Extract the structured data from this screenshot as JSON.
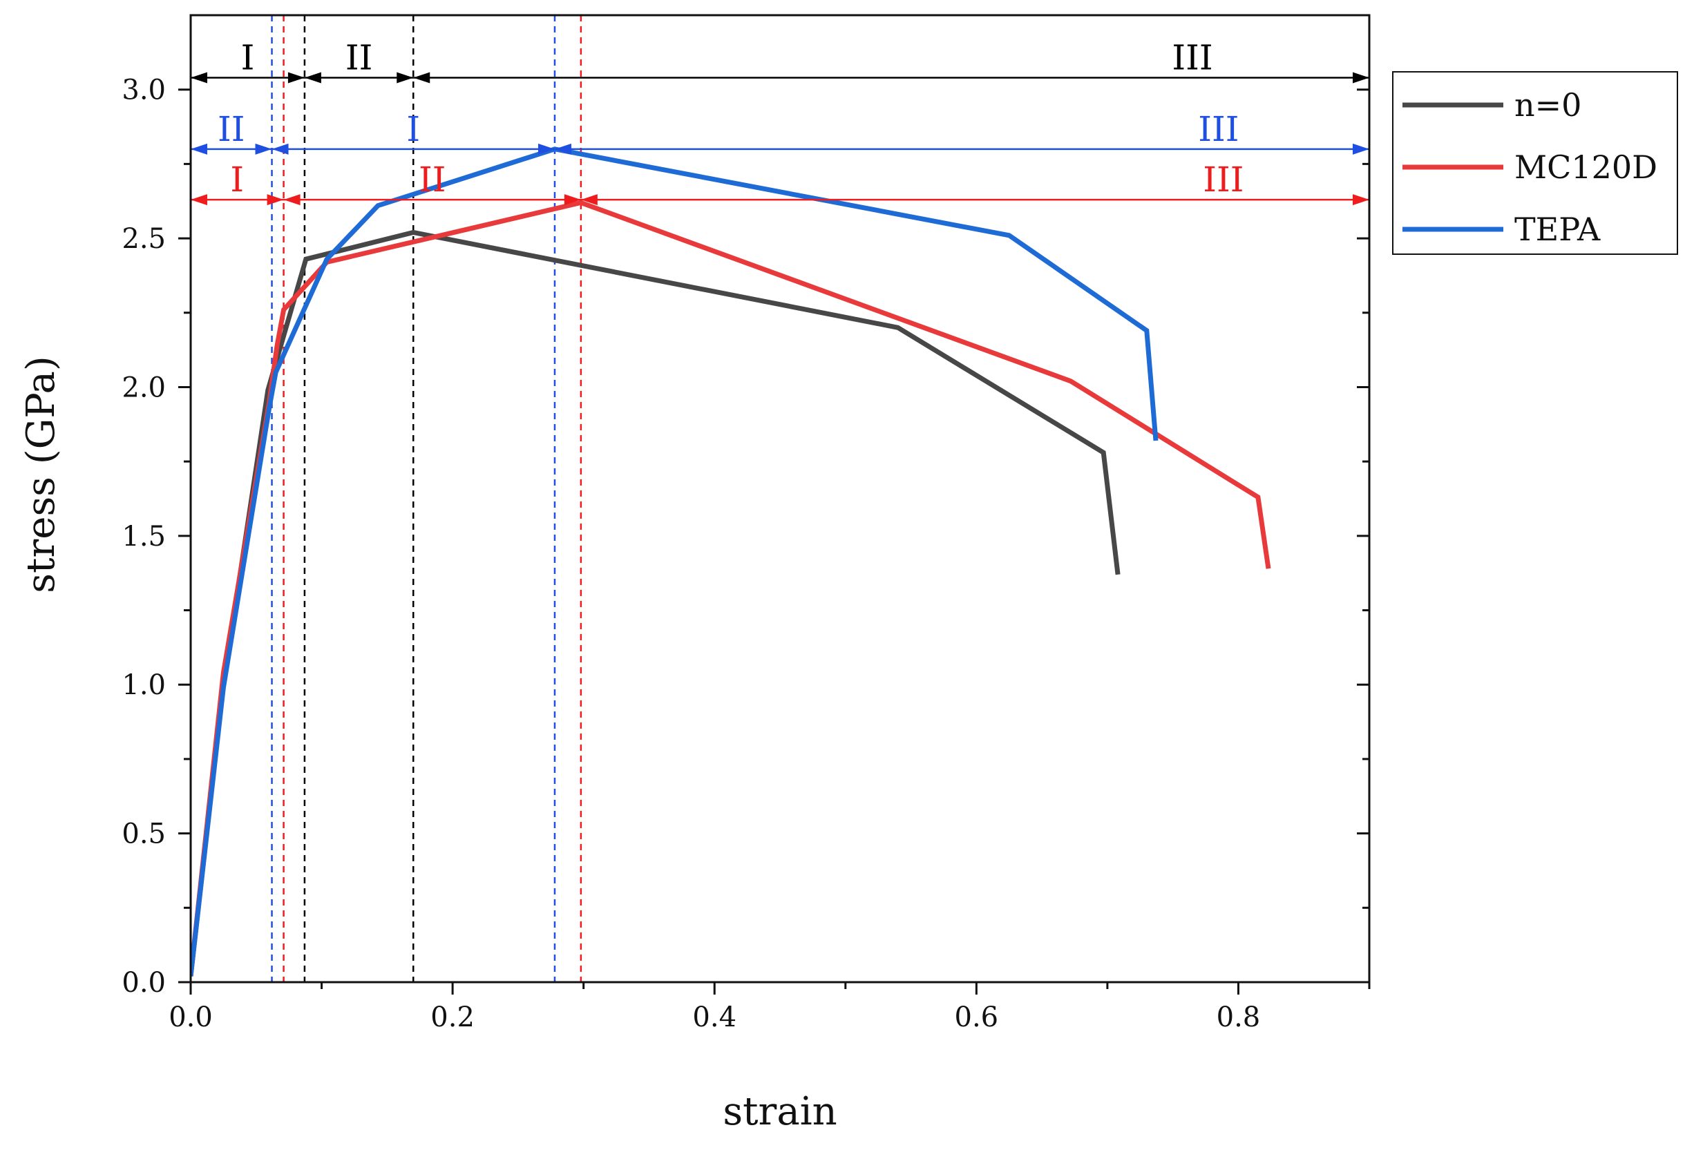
{
  "chart_data": {
    "type": "line",
    "xlabel": "strain",
    "ylabel": "stress (GPa)",
    "xlim": [
      0.0,
      0.9
    ],
    "ylim": [
      0.0,
      3.25
    ],
    "x_ticks": [
      "0.0",
      "0.2",
      "0.4",
      "0.6",
      "0.8"
    ],
    "x_tick_values": [
      0.0,
      0.2,
      0.4,
      0.6,
      0.8
    ],
    "y_ticks": [
      "0.0",
      "0.5",
      "1.0",
      "1.5",
      "2.0",
      "2.5",
      "3.0"
    ],
    "y_tick_values": [
      0.0,
      0.5,
      1.0,
      1.5,
      2.0,
      2.5,
      3.0
    ],
    "grid": false,
    "legend_position": "outside-right-top",
    "series": [
      {
        "name": "n=0",
        "color": "#474747",
        "points": [
          [
            0.0,
            0.02
          ],
          [
            0.025,
            1.0
          ],
          [
            0.059,
            1.99
          ],
          [
            0.088,
            2.43
          ],
          [
            0.17,
            2.52
          ],
          [
            0.54,
            2.2
          ],
          [
            0.697,
            1.78
          ],
          [
            0.708,
            1.37
          ]
        ]
      },
      {
        "name": "MC120D",
        "color": "#e8393b",
        "points": [
          [
            0.0,
            0.02
          ],
          [
            0.025,
            1.04
          ],
          [
            0.06,
            1.95
          ],
          [
            0.066,
            2.14
          ],
          [
            0.071,
            2.26
          ],
          [
            0.104,
            2.42
          ],
          [
            0.298,
            2.62
          ],
          [
            0.672,
            2.02
          ],
          [
            0.815,
            1.63
          ],
          [
            0.823,
            1.39
          ]
        ]
      },
      {
        "name": "TEPA",
        "color": "#1f6bd6",
        "points": [
          [
            0.0,
            0.02
          ],
          [
            0.025,
            0.99
          ],
          [
            0.06,
            1.93
          ],
          [
            0.065,
            2.05
          ],
          [
            0.104,
            2.43
          ],
          [
            0.143,
            2.61
          ],
          [
            0.278,
            2.8
          ],
          [
            0.625,
            2.51
          ],
          [
            0.73,
            2.19
          ],
          [
            0.737,
            1.82
          ]
        ]
      }
    ],
    "region_lines": [
      {
        "group": "n=0",
        "color": "#000000",
        "x": 0.087
      },
      {
        "group": "n=0",
        "color": "#000000",
        "x": 0.17
      },
      {
        "group": "TEPA",
        "color": "#1f4fe0",
        "x": 0.062
      },
      {
        "group": "TEPA",
        "color": "#1f4fe0",
        "x": 0.278
      },
      {
        "group": "MC120D",
        "color": "#ee1c1c",
        "x": 0.071
      },
      {
        "group": "MC120D",
        "color": "#ee1c1c",
        "x": 0.298
      }
    ],
    "region_annotations": [
      {
        "group": "n=0",
        "color": "#000000",
        "y": 3.04,
        "boundaries": [
          0.0,
          0.087,
          0.17,
          0.9
        ],
        "labels": [
          "I",
          "II",
          "III"
        ]
      },
      {
        "group": "TEPA",
        "color": "#1f4fe0",
        "y": 2.8,
        "boundaries": [
          0.0,
          0.062,
          0.278,
          0.9
        ],
        "labels": [
          "II",
          "I",
          "III"
        ]
      },
      {
        "group": "MC120D",
        "color": "#ee1c1c",
        "y": 2.63,
        "boundaries": [
          0.0,
          0.071,
          0.298,
          0.9
        ],
        "labels": [
          "I",
          "II",
          "III"
        ]
      }
    ]
  }
}
